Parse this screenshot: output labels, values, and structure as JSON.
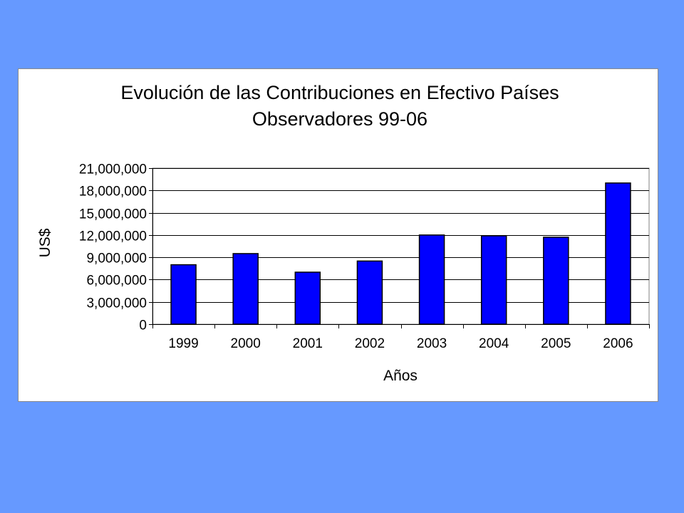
{
  "chart_data": {
    "type": "bar",
    "title": [
      "Evolución de las Contribuciones en Efectivo Países",
      "Observadores 99-06"
    ],
    "xlabel": "Años",
    "ylabel": "US$",
    "categories": [
      "1999",
      "2000",
      "2001",
      "2002",
      "2003",
      "2004",
      "2005",
      "2006"
    ],
    "values": [
      8000000,
      9500000,
      7000000,
      8500000,
      12000000,
      11900000,
      11700000,
      19000000
    ],
    "ylim": [
      0,
      21000000
    ],
    "yticks": [
      0,
      3000000,
      6000000,
      9000000,
      12000000,
      15000000,
      18000000,
      21000000
    ],
    "ytick_labels": [
      "0",
      "3,000,000",
      "6,000,000",
      "9,000,000",
      "12,000,000",
      "15,000,000",
      "18,000,000",
      "21,000,000"
    ],
    "grid": true,
    "legend": "none",
    "colors": {
      "bar": "#0000ff",
      "bar_edge": "#000000",
      "grid": "#000000",
      "background": "#6699ff"
    }
  }
}
